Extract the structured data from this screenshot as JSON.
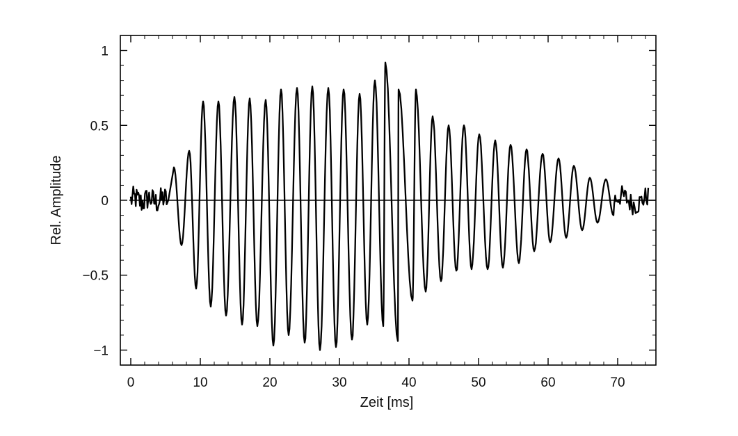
{
  "chart_data": {
    "type": "line",
    "title": "",
    "xlabel": "Zeit  [ms]",
    "ylabel": "Rel. Amplitude",
    "xlim": [
      -1.5,
      75.5
    ],
    "ylim": [
      -1.1,
      1.1
    ],
    "xticks": [
      0,
      10,
      20,
      30,
      40,
      50,
      60,
      70
    ],
    "xtick_labels": [
      "0",
      "10",
      "20",
      "30",
      "40",
      "50",
      "60",
      "70"
    ],
    "yticks": [
      1,
      0.5,
      0,
      -0.5,
      -1
    ],
    "ytick_labels": [
      "1",
      "0.5",
      "0",
      "−0.5",
      "−1"
    ],
    "grid": false,
    "zero_line": true,
    "waveform": {
      "period_ms": 2.3,
      "first_cycle_peak_ms": 6.2,
      "positive_peaks": [
        [
          6.2,
          0.22
        ],
        [
          8.4,
          0.33
        ],
        [
          10.4,
          0.66
        ],
        [
          12.6,
          0.66
        ],
        [
          14.9,
          0.69
        ],
        [
          17.1,
          0.68
        ],
        [
          19.4,
          0.67
        ],
        [
          21.6,
          0.74
        ],
        [
          23.9,
          0.75
        ],
        [
          26.1,
          0.76
        ],
        [
          28.4,
          0.75
        ],
        [
          30.6,
          0.74
        ],
        [
          32.9,
          0.71
        ],
        [
          35.1,
          0.8
        ],
        [
          36.6,
          0.92
        ],
        [
          38.5,
          0.74
        ],
        [
          41.0,
          0.74
        ],
        [
          43.4,
          0.56
        ],
        [
          45.7,
          0.5
        ],
        [
          47.9,
          0.5
        ],
        [
          50.1,
          0.44
        ],
        [
          52.4,
          0.4
        ],
        [
          54.6,
          0.37
        ],
        [
          56.9,
          0.34
        ],
        [
          59.2,
          0.31
        ],
        [
          61.5,
          0.28
        ],
        [
          63.7,
          0.23
        ],
        [
          66.0,
          0.15
        ],
        [
          68.3,
          0.14
        ]
      ],
      "negative_peaks": [
        [
          7.3,
          -0.3
        ],
        [
          9.4,
          -0.59
        ],
        [
          11.5,
          -0.71
        ],
        [
          13.7,
          -0.77
        ],
        [
          16.0,
          -0.83
        ],
        [
          18.2,
          -0.84
        ],
        [
          20.5,
          -0.97
        ],
        [
          22.7,
          -0.9
        ],
        [
          25.0,
          -0.95
        ],
        [
          27.2,
          -1.0
        ],
        [
          29.5,
          -0.98
        ],
        [
          31.8,
          -0.93
        ],
        [
          34.0,
          -0.83
        ],
        [
          36.3,
          -0.84
        ],
        [
          38.4,
          -0.94
        ],
        [
          40.5,
          -0.67
        ],
        [
          42.4,
          -0.61
        ],
        [
          44.6,
          -0.54
        ],
        [
          46.8,
          -0.47
        ],
        [
          49.0,
          -0.46
        ],
        [
          51.3,
          -0.46
        ],
        [
          53.5,
          -0.45
        ],
        [
          55.8,
          -0.42
        ],
        [
          58.0,
          -0.34
        ],
        [
          60.3,
          -0.28
        ],
        [
          62.6,
          -0.25
        ],
        [
          64.9,
          -0.2
        ],
        [
          67.1,
          -0.15
        ],
        [
          69.4,
          -0.1
        ]
      ],
      "noise_segments": [
        {
          "start_ms": 0,
          "end_ms": 5.2,
          "amplitude": 0.08
        },
        {
          "start_ms": 69.5,
          "end_ms": 74.5,
          "amplitude": 0.07
        }
      ]
    }
  }
}
